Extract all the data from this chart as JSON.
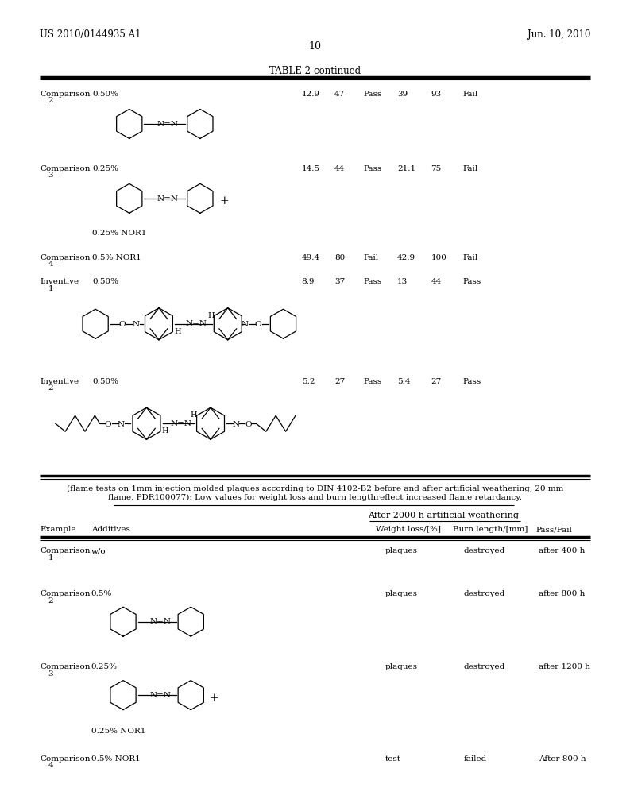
{
  "page_number": "10",
  "patent_left": "US 2010/0144935 A1",
  "patent_right": "Jun. 10, 2010",
  "table_title": "TABLE 2-continued",
  "footnote1": "(flame tests on 1mm injection molded plaques according to DIN 4102-B2 before and after artificial weathering, 20 mm",
  "footnote2": "flame, PDR100077): Low values for weight loss and burn lengthreflect increased flame retardancy.",
  "table3_header_main": "After 2000 h artificial weathering",
  "bg_color": "#ffffff"
}
